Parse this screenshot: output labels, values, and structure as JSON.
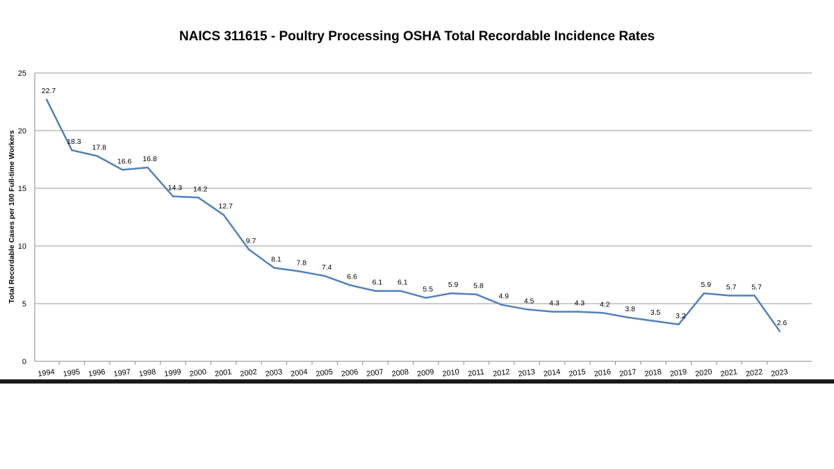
{
  "chart_data": {
    "type": "line",
    "title": "NAICS 311615 - Poultry Processing OSHA Total Recordable Incidence Rates",
    "xlabel": "",
    "ylabel": "Total Recordable Cases per 100 Full-time Workers",
    "ylim": [
      0,
      25
    ],
    "yticks": [
      "0",
      "5",
      "10",
      "15",
      "20",
      "25"
    ],
    "grid": "horizontal",
    "line_color": "#4f81bd",
    "categories": [
      "1994",
      "1995",
      "1996",
      "1997",
      "1998",
      "1999",
      "2000",
      "2001",
      "2002",
      "2003",
      "2004",
      "2005",
      "2006",
      "2007",
      "2008",
      "2009",
      "2010",
      "2011",
      "2012",
      "2013",
      "2014",
      "2015",
      "2016",
      "2017",
      "2018",
      "2019",
      "2020",
      "2021",
      "2022",
      "2023"
    ],
    "values": [
      22.7,
      18.3,
      17.8,
      16.6,
      16.8,
      14.3,
      14.2,
      12.7,
      9.7,
      8.1,
      7.8,
      7.4,
      6.6,
      6.1,
      6.1,
      5.5,
      5.9,
      5.8,
      4.9,
      4.5,
      4.3,
      4.3,
      4.2,
      3.8,
      3.5,
      3.2,
      5.9,
      5.7,
      5.7,
      2.6
    ],
    "data_labels": [
      "22.7",
      "18.3",
      "17.8",
      "16.6",
      "16.8",
      "14.3",
      "14.2",
      "12.7",
      "9.7",
      "8.1",
      "7.8",
      "7.4",
      "6.6",
      "6.1",
      "6.1",
      "5.5",
      "5.9",
      "5.8",
      "4.9",
      "4.5",
      "4.3",
      "4.3",
      "4.2",
      "3.8",
      "3.5",
      "3.2",
      "5.9",
      "5.7",
      "5.7",
      "2.6"
    ]
  }
}
